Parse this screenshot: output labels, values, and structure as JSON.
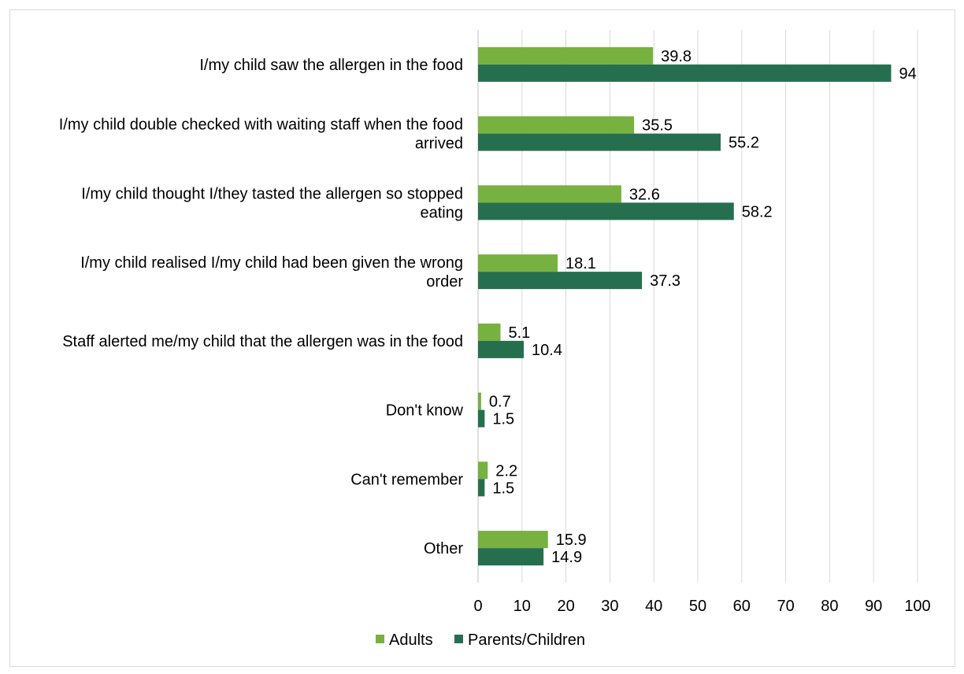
{
  "chart_data": {
    "type": "bar",
    "orientation": "horizontal",
    "categories": [
      [
        "I/my child saw the allergen in the food"
      ],
      [
        "I/my child double checked with waiting staff when the food",
        "arrived"
      ],
      [
        "I/my child thought I/they tasted the allergen so stopped",
        "eating"
      ],
      [
        "I/my child realised I/my child had been given the wrong",
        "order"
      ],
      [
        "Staff alerted me/my child that the allergen was in the food"
      ],
      [
        "Don't know"
      ],
      [
        "Can't remember"
      ],
      [
        "Other"
      ]
    ],
    "series": [
      {
        "name": "Adults",
        "color": "#77b140",
        "values": [
          39.8,
          35.5,
          32.6,
          18.1,
          5.1,
          0.7,
          2.2,
          15.9
        ],
        "labels": [
          "39.8",
          "35.5",
          "32.6",
          "18.1",
          "5.1",
          "0.7",
          "2.2",
          "15.9"
        ]
      },
      {
        "name": "Parents/Children",
        "color": "#266f4e",
        "values": [
          94,
          55.2,
          58.2,
          37.3,
          10.4,
          1.5,
          1.5,
          14.9
        ],
        "labels": [
          "94",
          "55.2",
          "58.2",
          "37.3",
          "10.4",
          "1.5",
          "1.5",
          "14.9"
        ]
      }
    ],
    "xlim": [
      0,
      100
    ],
    "xticks": [
      0,
      10,
      20,
      30,
      40,
      50,
      60,
      70,
      80,
      90,
      100
    ],
    "grid": true,
    "legend_position": "bottom",
    "title": "",
    "xlabel": "",
    "ylabel": ""
  }
}
